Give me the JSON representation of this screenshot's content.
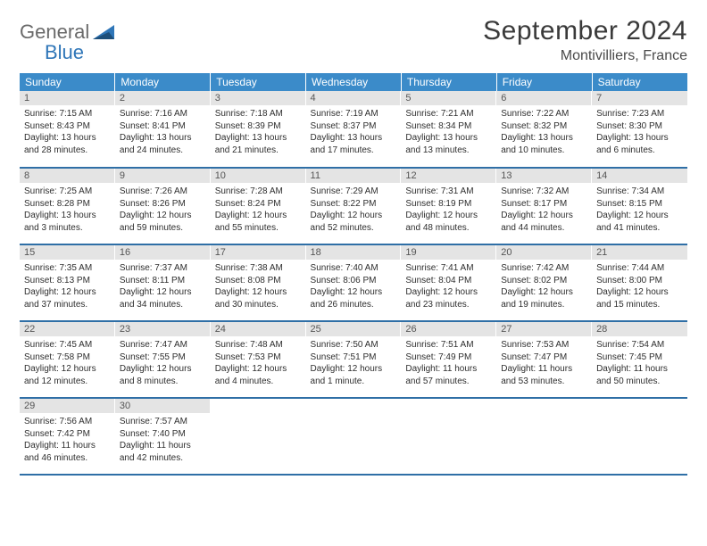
{
  "logo": {
    "word1": "General",
    "word2": "Blue"
  },
  "title": "September 2024",
  "location": "Montivilliers, France",
  "colors": {
    "header_bg": "#3b8bc9",
    "header_text": "#ffffff",
    "daynum_bg": "#e4e4e4",
    "daynum_text": "#555555",
    "row_border": "#2f6fa6",
    "title_color": "#3a3a3a",
    "body_text": "#2e2e2e",
    "logo_gray": "#6a6a6a",
    "logo_blue": "#2f76b8"
  },
  "weekday_headers": [
    "Sunday",
    "Monday",
    "Tuesday",
    "Wednesday",
    "Thursday",
    "Friday",
    "Saturday"
  ],
  "weeks": [
    [
      {
        "n": "1",
        "sr": "Sunrise: 7:15 AM",
        "ss": "Sunset: 8:43 PM",
        "dl": "Daylight: 13 hours and 28 minutes."
      },
      {
        "n": "2",
        "sr": "Sunrise: 7:16 AM",
        "ss": "Sunset: 8:41 PM",
        "dl": "Daylight: 13 hours and 24 minutes."
      },
      {
        "n": "3",
        "sr": "Sunrise: 7:18 AM",
        "ss": "Sunset: 8:39 PM",
        "dl": "Daylight: 13 hours and 21 minutes."
      },
      {
        "n": "4",
        "sr": "Sunrise: 7:19 AM",
        "ss": "Sunset: 8:37 PM",
        "dl": "Daylight: 13 hours and 17 minutes."
      },
      {
        "n": "5",
        "sr": "Sunrise: 7:21 AM",
        "ss": "Sunset: 8:34 PM",
        "dl": "Daylight: 13 hours and 13 minutes."
      },
      {
        "n": "6",
        "sr": "Sunrise: 7:22 AM",
        "ss": "Sunset: 8:32 PM",
        "dl": "Daylight: 13 hours and 10 minutes."
      },
      {
        "n": "7",
        "sr": "Sunrise: 7:23 AM",
        "ss": "Sunset: 8:30 PM",
        "dl": "Daylight: 13 hours and 6 minutes."
      }
    ],
    [
      {
        "n": "8",
        "sr": "Sunrise: 7:25 AM",
        "ss": "Sunset: 8:28 PM",
        "dl": "Daylight: 13 hours and 3 minutes."
      },
      {
        "n": "9",
        "sr": "Sunrise: 7:26 AM",
        "ss": "Sunset: 8:26 PM",
        "dl": "Daylight: 12 hours and 59 minutes."
      },
      {
        "n": "10",
        "sr": "Sunrise: 7:28 AM",
        "ss": "Sunset: 8:24 PM",
        "dl": "Daylight: 12 hours and 55 minutes."
      },
      {
        "n": "11",
        "sr": "Sunrise: 7:29 AM",
        "ss": "Sunset: 8:22 PM",
        "dl": "Daylight: 12 hours and 52 minutes."
      },
      {
        "n": "12",
        "sr": "Sunrise: 7:31 AM",
        "ss": "Sunset: 8:19 PM",
        "dl": "Daylight: 12 hours and 48 minutes."
      },
      {
        "n": "13",
        "sr": "Sunrise: 7:32 AM",
        "ss": "Sunset: 8:17 PM",
        "dl": "Daylight: 12 hours and 44 minutes."
      },
      {
        "n": "14",
        "sr": "Sunrise: 7:34 AM",
        "ss": "Sunset: 8:15 PM",
        "dl": "Daylight: 12 hours and 41 minutes."
      }
    ],
    [
      {
        "n": "15",
        "sr": "Sunrise: 7:35 AM",
        "ss": "Sunset: 8:13 PM",
        "dl": "Daylight: 12 hours and 37 minutes."
      },
      {
        "n": "16",
        "sr": "Sunrise: 7:37 AM",
        "ss": "Sunset: 8:11 PM",
        "dl": "Daylight: 12 hours and 34 minutes."
      },
      {
        "n": "17",
        "sr": "Sunrise: 7:38 AM",
        "ss": "Sunset: 8:08 PM",
        "dl": "Daylight: 12 hours and 30 minutes."
      },
      {
        "n": "18",
        "sr": "Sunrise: 7:40 AM",
        "ss": "Sunset: 8:06 PM",
        "dl": "Daylight: 12 hours and 26 minutes."
      },
      {
        "n": "19",
        "sr": "Sunrise: 7:41 AM",
        "ss": "Sunset: 8:04 PM",
        "dl": "Daylight: 12 hours and 23 minutes."
      },
      {
        "n": "20",
        "sr": "Sunrise: 7:42 AM",
        "ss": "Sunset: 8:02 PM",
        "dl": "Daylight: 12 hours and 19 minutes."
      },
      {
        "n": "21",
        "sr": "Sunrise: 7:44 AM",
        "ss": "Sunset: 8:00 PM",
        "dl": "Daylight: 12 hours and 15 minutes."
      }
    ],
    [
      {
        "n": "22",
        "sr": "Sunrise: 7:45 AM",
        "ss": "Sunset: 7:58 PM",
        "dl": "Daylight: 12 hours and 12 minutes."
      },
      {
        "n": "23",
        "sr": "Sunrise: 7:47 AM",
        "ss": "Sunset: 7:55 PM",
        "dl": "Daylight: 12 hours and 8 minutes."
      },
      {
        "n": "24",
        "sr": "Sunrise: 7:48 AM",
        "ss": "Sunset: 7:53 PM",
        "dl": "Daylight: 12 hours and 4 minutes."
      },
      {
        "n": "25",
        "sr": "Sunrise: 7:50 AM",
        "ss": "Sunset: 7:51 PM",
        "dl": "Daylight: 12 hours and 1 minute."
      },
      {
        "n": "26",
        "sr": "Sunrise: 7:51 AM",
        "ss": "Sunset: 7:49 PM",
        "dl": "Daylight: 11 hours and 57 minutes."
      },
      {
        "n": "27",
        "sr": "Sunrise: 7:53 AM",
        "ss": "Sunset: 7:47 PM",
        "dl": "Daylight: 11 hours and 53 minutes."
      },
      {
        "n": "28",
        "sr": "Sunrise: 7:54 AM",
        "ss": "Sunset: 7:45 PM",
        "dl": "Daylight: 11 hours and 50 minutes."
      }
    ],
    [
      {
        "n": "29",
        "sr": "Sunrise: 7:56 AM",
        "ss": "Sunset: 7:42 PM",
        "dl": "Daylight: 11 hours and 46 minutes."
      },
      {
        "n": "30",
        "sr": "Sunrise: 7:57 AM",
        "ss": "Sunset: 7:40 PM",
        "dl": "Daylight: 11 hours and 42 minutes."
      },
      {
        "empty": true
      },
      {
        "empty": true
      },
      {
        "empty": true
      },
      {
        "empty": true
      },
      {
        "empty": true
      }
    ]
  ]
}
